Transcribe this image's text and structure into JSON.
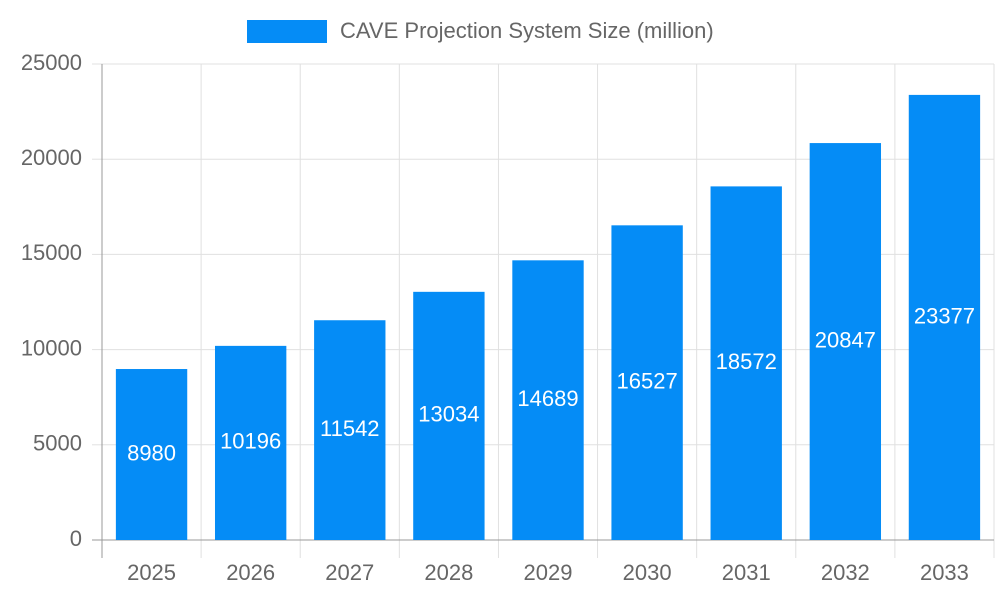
{
  "chart_data": {
    "type": "bar",
    "categories": [
      "2025",
      "2026",
      "2027",
      "2028",
      "2029",
      "2030",
      "2031",
      "2032",
      "2033"
    ],
    "series": [
      {
        "name": "CAVE Projection System Size (million)",
        "color": "#058cf6",
        "values": [
          8980,
          10196,
          11542,
          13034,
          14689,
          16527,
          18572,
          20847,
          23377
        ]
      }
    ],
    "ylim": [
      0,
      25000
    ],
    "yticks": [
      0,
      5000,
      10000,
      15000,
      20000,
      25000
    ],
    "grid": true,
    "legend": "top"
  }
}
